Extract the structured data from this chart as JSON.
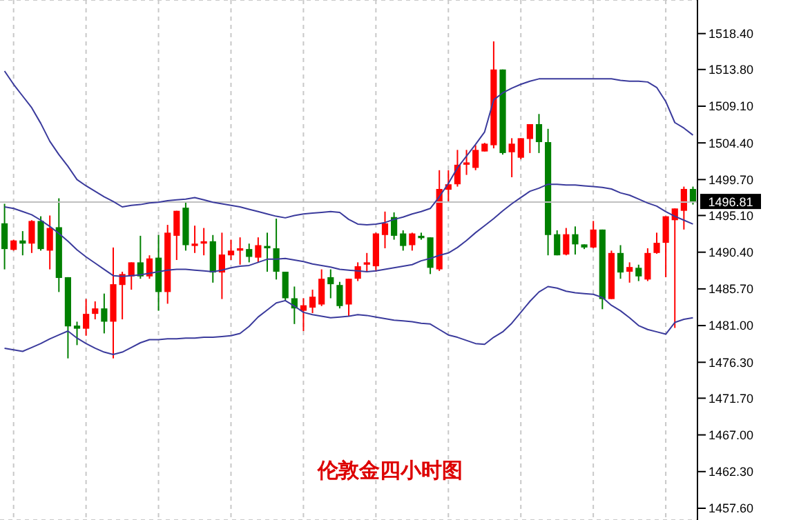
{
  "chart_data": {
    "type": "candlestick",
    "title": "伦敦金四小时图",
    "categories": [
      null,
      null,
      null,
      null,
      null,
      null,
      null,
      null,
      null,
      null,
      null,
      null,
      null,
      null,
      null,
      null,
      null,
      null,
      null,
      null,
      null,
      null,
      null,
      null,
      null,
      null,
      null,
      null,
      null,
      null,
      null,
      null,
      null,
      null,
      null,
      null,
      null,
      null,
      null,
      null,
      null,
      null,
      null,
      null,
      null,
      null,
      null,
      null,
      null,
      null,
      null,
      null,
      null,
      null,
      null,
      null,
      null,
      null,
      null,
      null,
      null,
      null,
      null,
      null,
      null,
      null,
      null,
      null,
      null,
      null,
      null,
      null,
      null,
      null,
      null,
      null,
      null
    ],
    "ohlc": [
      [
        1494.1,
        1496.6,
        1488.2,
        1490.8
      ],
      [
        1490.7,
        1492.0,
        1490.6,
        1491.9
      ],
      [
        1491.9,
        1493.1,
        1490.0,
        1491.5
      ],
      [
        1491.5,
        1494.5,
        1490.3,
        1494.4
      ],
      [
        1494.4,
        1495.0,
        1490.6,
        1490.8
      ],
      [
        1490.6,
        1495.1,
        1488.2,
        1493.5
      ],
      [
        1493.6,
        1497.3,
        1485.3,
        1487.1
      ],
      [
        1487.2,
        1487.2,
        1476.8,
        1480.9
      ],
      [
        1481.0,
        1481.5,
        1478.5,
        1480.6
      ],
      [
        1480.6,
        1484.4,
        1479.7,
        1482.5
      ],
      [
        1482.5,
        1484.1,
        1481.8,
        1483.2
      ],
      [
        1483.2,
        1485.1,
        1480.0,
        1481.5
      ],
      [
        1481.5,
        1491.0,
        1476.8,
        1486.3
      ],
      [
        1486.2,
        1487.9,
        1481.8,
        1487.6
      ],
      [
        1487.3,
        1489.1,
        1485.6,
        1489.1
      ],
      [
        1489.1,
        1492.5,
        1487.0,
        1487.3
      ],
      [
        1487.3,
        1490.0,
        1487.0,
        1489.6
      ],
      [
        1489.7,
        1492.6,
        1482.9,
        1485.3
      ],
      [
        1485.3,
        1493.9,
        1483.8,
        1492.9
      ],
      [
        1492.5,
        1495.7,
        1489.4,
        1495.7
      ],
      [
        1496.1,
        1496.9,
        1490.6,
        1491.3
      ],
      [
        1491.2,
        1493.8,
        1490.3,
        1491.5
      ],
      [
        1491.5,
        1493.5,
        1490.0,
        1491.8
      ],
      [
        1491.8,
        1492.6,
        1486.5,
        1487.8
      ],
      [
        1487.8,
        1492.9,
        1484.4,
        1490.1
      ],
      [
        1490.0,
        1492.0,
        1489.4,
        1490.6
      ],
      [
        1490.6,
        1492.3,
        1488.8,
        1490.9
      ],
      [
        1490.8,
        1491.5,
        1489.1,
        1489.8
      ],
      [
        1489.7,
        1492.3,
        1489.1,
        1491.3
      ],
      [
        1491.2,
        1492.9,
        1487.9,
        1490.9
      ],
      [
        1490.9,
        1494.7,
        1486.9,
        1487.9
      ],
      [
        1487.9,
        1487.9,
        1484.1,
        1484.5
      ],
      [
        1484.5,
        1486.0,
        1481.2,
        1483.2
      ],
      [
        1482.9,
        1484.5,
        1480.3,
        1483.6
      ],
      [
        1483.3,
        1485.6,
        1482.6,
        1484.7
      ],
      [
        1483.7,
        1488.2,
        1483.5,
        1487.0
      ],
      [
        1487.2,
        1488.2,
        1484.5,
        1486.3
      ],
      [
        1486.2,
        1486.6,
        1483.2,
        1483.5
      ],
      [
        1483.7,
        1487.0,
        1482.2,
        1487.0
      ],
      [
        1487.0,
        1489.1,
        1486.7,
        1488.6
      ],
      [
        1488.8,
        1490.3,
        1487.9,
        1489.1
      ],
      [
        1488.6,
        1492.9,
        1487.9,
        1492.8
      ],
      [
        1492.6,
        1495.6,
        1490.9,
        1494.1
      ],
      [
        1494.9,
        1495.5,
        1492.0,
        1492.5
      ],
      [
        1492.8,
        1493.2,
        1490.6,
        1491.2
      ],
      [
        1491.3,
        1492.9,
        1490.6,
        1492.8
      ],
      [
        1492.5,
        1492.9,
        1492.0,
        1492.2
      ],
      [
        1492.3,
        1492.3,
        1487.6,
        1488.4
      ],
      [
        1488.2,
        1500.9,
        1488.0,
        1498.5
      ],
      [
        1498.4,
        1500.9,
        1496.8,
        1499.1
      ],
      [
        1499.1,
        1503.5,
        1498.8,
        1501.6
      ],
      [
        1501.6,
        1503.5,
        1500.3,
        1501.9
      ],
      [
        1501.2,
        1504.1,
        1500.9,
        1503.5
      ],
      [
        1503.3,
        1504.4,
        1503.3,
        1504.3
      ],
      [
        1504.1,
        1517.4,
        1503.7,
        1513.8
      ],
      [
        1513.8,
        1513.8,
        1502.9,
        1503.1
      ],
      [
        1503.2,
        1505.0,
        1500.0,
        1504.3
      ],
      [
        1502.5,
        1505.0,
        1502.3,
        1505.0
      ],
      [
        1504.9,
        1506.8,
        1503.1,
        1506.8
      ],
      [
        1506.8,
        1508.1,
        1503.1,
        1504.5
      ],
      [
        1504.5,
        1506.2,
        1490.0,
        1492.6
      ],
      [
        1492.7,
        1493.2,
        1490.0,
        1490.0
      ],
      [
        1490.1,
        1493.5,
        1490.0,
        1492.7
      ],
      [
        1492.7,
        1493.7,
        1490.1,
        1491.4
      ],
      [
        1491.4,
        1491.4,
        1490.8,
        1491.0
      ],
      [
        1491.0,
        1494.4,
        1490.9,
        1493.3
      ],
      [
        1493.3,
        1493.3,
        1483.1,
        1484.4
      ],
      [
        1484.4,
        1490.6,
        1484.4,
        1490.3
      ],
      [
        1490.3,
        1491.3,
        1487.0,
        1487.8
      ],
      [
        1487.9,
        1489.1,
        1486.5,
        1488.5
      ],
      [
        1488.4,
        1488.8,
        1486.7,
        1487.3
      ],
      [
        1486.9,
        1490.9,
        1486.7,
        1490.3
      ],
      [
        1490.3,
        1492.9,
        1490.2,
        1491.6
      ],
      [
        1491.6,
        1495.0,
        1487.2,
        1495.0
      ],
      [
        1494.5,
        1496.0,
        1480.7,
        1496.0
      ],
      [
        1495.7,
        1498.8,
        1493.3,
        1498.5
      ],
      [
        1498.5,
        1498.8,
        1496.5,
        1496.8
      ]
    ],
    "colors": [
      "#008000",
      "#ff0000",
      "#008000",
      "#ff0000",
      "#008000",
      "#ff0000",
      "#008000",
      "#008000",
      "#008000",
      "#ff0000",
      "#ff0000",
      "#008000",
      "#ff0000",
      "#ff0000",
      "#ff0000",
      "#008000",
      "#ff0000",
      "#008000",
      "#ff0000",
      "#ff0000",
      "#008000",
      "#ff0000",
      "#ff0000",
      "#008000",
      "#ff0000",
      "#ff0000",
      "#ff0000",
      "#008000",
      "#ff0000",
      "#008000",
      "#008000",
      "#008000",
      "#008000",
      "#ff0000",
      "#ff0000",
      "#ff0000",
      "#008000",
      "#008000",
      "#ff0000",
      "#ff0000",
      "#ff0000",
      "#ff0000",
      "#ff0000",
      "#008000",
      "#008000",
      "#ff0000",
      "#008000",
      "#008000",
      "#ff0000",
      "#ff0000",
      "#ff0000",
      "#ff0000",
      "#ff0000",
      "#ff0000",
      "#ff0000",
      "#008000",
      "#ff0000",
      "#ff0000",
      "#ff0000",
      "#008000",
      "#008000",
      "#008000",
      "#ff0000",
      "#008000",
      "#008000",
      "#ff0000",
      "#008000",
      "#ff0000",
      "#008000",
      "#ff0000",
      "#008000",
      "#ff0000",
      "#ff0000",
      "#ff0000",
      "#ff0000",
      "#ff0000",
      "#008000"
    ],
    "series": [
      {
        "type": "line",
        "color": "#3a3a9c",
        "values": [
          1513.6,
          1511.9,
          1510.4,
          1508.9,
          1506.9,
          1504.6,
          1502.9,
          1501.4,
          1499.7,
          1498.9,
          1498.2,
          1497.5,
          1496.9,
          1496.2,
          1496.4,
          1496.5,
          1496.7,
          1496.8,
          1497.0,
          1497.1,
          1497.2,
          1497.4,
          1497.1,
          1496.8,
          1496.6,
          1496.4,
          1496.2,
          1495.9,
          1495.6,
          1495.3,
          1495.0,
          1494.8,
          1495.1,
          1495.3,
          1495.4,
          1495.5,
          1495.6,
          1495.5,
          1494.6,
          1494.0,
          1493.9,
          1494.0,
          1494.2,
          1494.6,
          1494.9,
          1495.3,
          1495.6,
          1496.0,
          1497.5,
          1499.2,
          1501.2,
          1502.7,
          1504.2,
          1505.8,
          1509.9,
          1510.8,
          1511.4,
          1511.9,
          1512.3,
          1512.6,
          1512.6,
          1512.6,
          1512.6,
          1512.6,
          1512.6,
          1512.6,
          1512.6,
          1512.6,
          1512.4,
          1512.3,
          1512.3,
          1512.2,
          1511.5,
          1509.7,
          1507.0,
          1506.3,
          1505.4
        ]
      },
      {
        "type": "line",
        "color": "#3a3a9c",
        "values": [
          1496.2,
          1496.0,
          1495.6,
          1495.2,
          1494.5,
          1493.7,
          1492.8,
          1491.8,
          1490.7,
          1489.8,
          1489.0,
          1488.2,
          1487.4,
          1487.3,
          1487.4,
          1487.5,
          1487.7,
          1487.9,
          1488.1,
          1488.2,
          1488.2,
          1488.1,
          1488.0,
          1487.9,
          1488.1,
          1488.4,
          1488.6,
          1488.7,
          1489.1,
          1489.5,
          1489.5,
          1489.6,
          1489.4,
          1489.2,
          1488.9,
          1488.7,
          1488.5,
          1488.2,
          1488.1,
          1488.0,
          1487.9,
          1488.0,
          1488.2,
          1488.4,
          1488.6,
          1488.8,
          1489.3,
          1489.6,
          1490.0,
          1490.3,
          1491.0,
          1491.9,
          1492.9,
          1493.8,
          1494.7,
          1495.7,
          1496.6,
          1497.4,
          1498.2,
          1498.6,
          1499.1,
          1499.1,
          1499.0,
          1499.0,
          1498.9,
          1498.8,
          1498.7,
          1498.5,
          1498.0,
          1497.7,
          1497.2,
          1496.7,
          1496.3,
          1495.6,
          1495.0,
          1494.5,
          1494.0
        ]
      },
      {
        "type": "line",
        "color": "#3a3a9c",
        "values": [
          1478.1,
          1477.9,
          1477.7,
          1478.2,
          1478.7,
          1479.3,
          1479.8,
          1480.3,
          1479.4,
          1478.7,
          1478.1,
          1477.6,
          1477.3,
          1477.6,
          1478.2,
          1478.8,
          1479.2,
          1479.2,
          1479.3,
          1479.3,
          1479.4,
          1479.4,
          1479.5,
          1479.5,
          1479.6,
          1479.7,
          1480.0,
          1480.9,
          1482.1,
          1483.0,
          1483.9,
          1484.2,
          1483.5,
          1482.7,
          1482.4,
          1482.2,
          1482.0,
          1482.1,
          1482.2,
          1482.4,
          1482.3,
          1482.1,
          1481.9,
          1481.7,
          1481.6,
          1481.5,
          1481.3,
          1481.2,
          1480.5,
          1479.8,
          1479.5,
          1479.1,
          1478.7,
          1478.6,
          1479.5,
          1480.2,
          1481.3,
          1482.7,
          1484.1,
          1485.3,
          1486.0,
          1485.8,
          1485.4,
          1485.2,
          1485.1,
          1485.0,
          1484.6,
          1483.6,
          1482.9,
          1482.0,
          1481.0,
          1480.5,
          1480.2,
          1479.9,
          1481.4,
          1481.8,
          1482.0
        ]
      }
    ],
    "ylim": [
      1456.1,
      1522.7
    ],
    "yticks": [
      {
        "value": 1518.4,
        "label": "1518.40"
      },
      {
        "value": 1513.8,
        "label": "1513.80"
      },
      {
        "value": 1509.1,
        "label": "1509.10"
      },
      {
        "value": 1504.4,
        "label": "1504.40"
      },
      {
        "value": 1499.7,
        "label": "1499.70"
      },
      {
        "value": 1495.1,
        "label": "1495.10"
      },
      {
        "value": 1490.4,
        "label": "1490.40"
      },
      {
        "value": 1485.7,
        "label": "1485.70"
      },
      {
        "value": 1481.0,
        "label": "1481.00"
      },
      {
        "value": 1476.3,
        "label": "1476.30"
      },
      {
        "value": 1471.7,
        "label": "1471.70"
      },
      {
        "value": 1467.0,
        "label": "1467.00"
      },
      {
        "value": 1462.3,
        "label": "1462.30"
      },
      {
        "value": 1457.6,
        "label": "1457.60"
      }
    ],
    "ref_lines": [
      {
        "axis": "y",
        "value": 1496.81,
        "label": "1496.81",
        "color": "#c0c0c0"
      }
    ],
    "grid": true,
    "tick_labels": "y",
    "marker": "none",
    "line_style": "solid"
  }
}
